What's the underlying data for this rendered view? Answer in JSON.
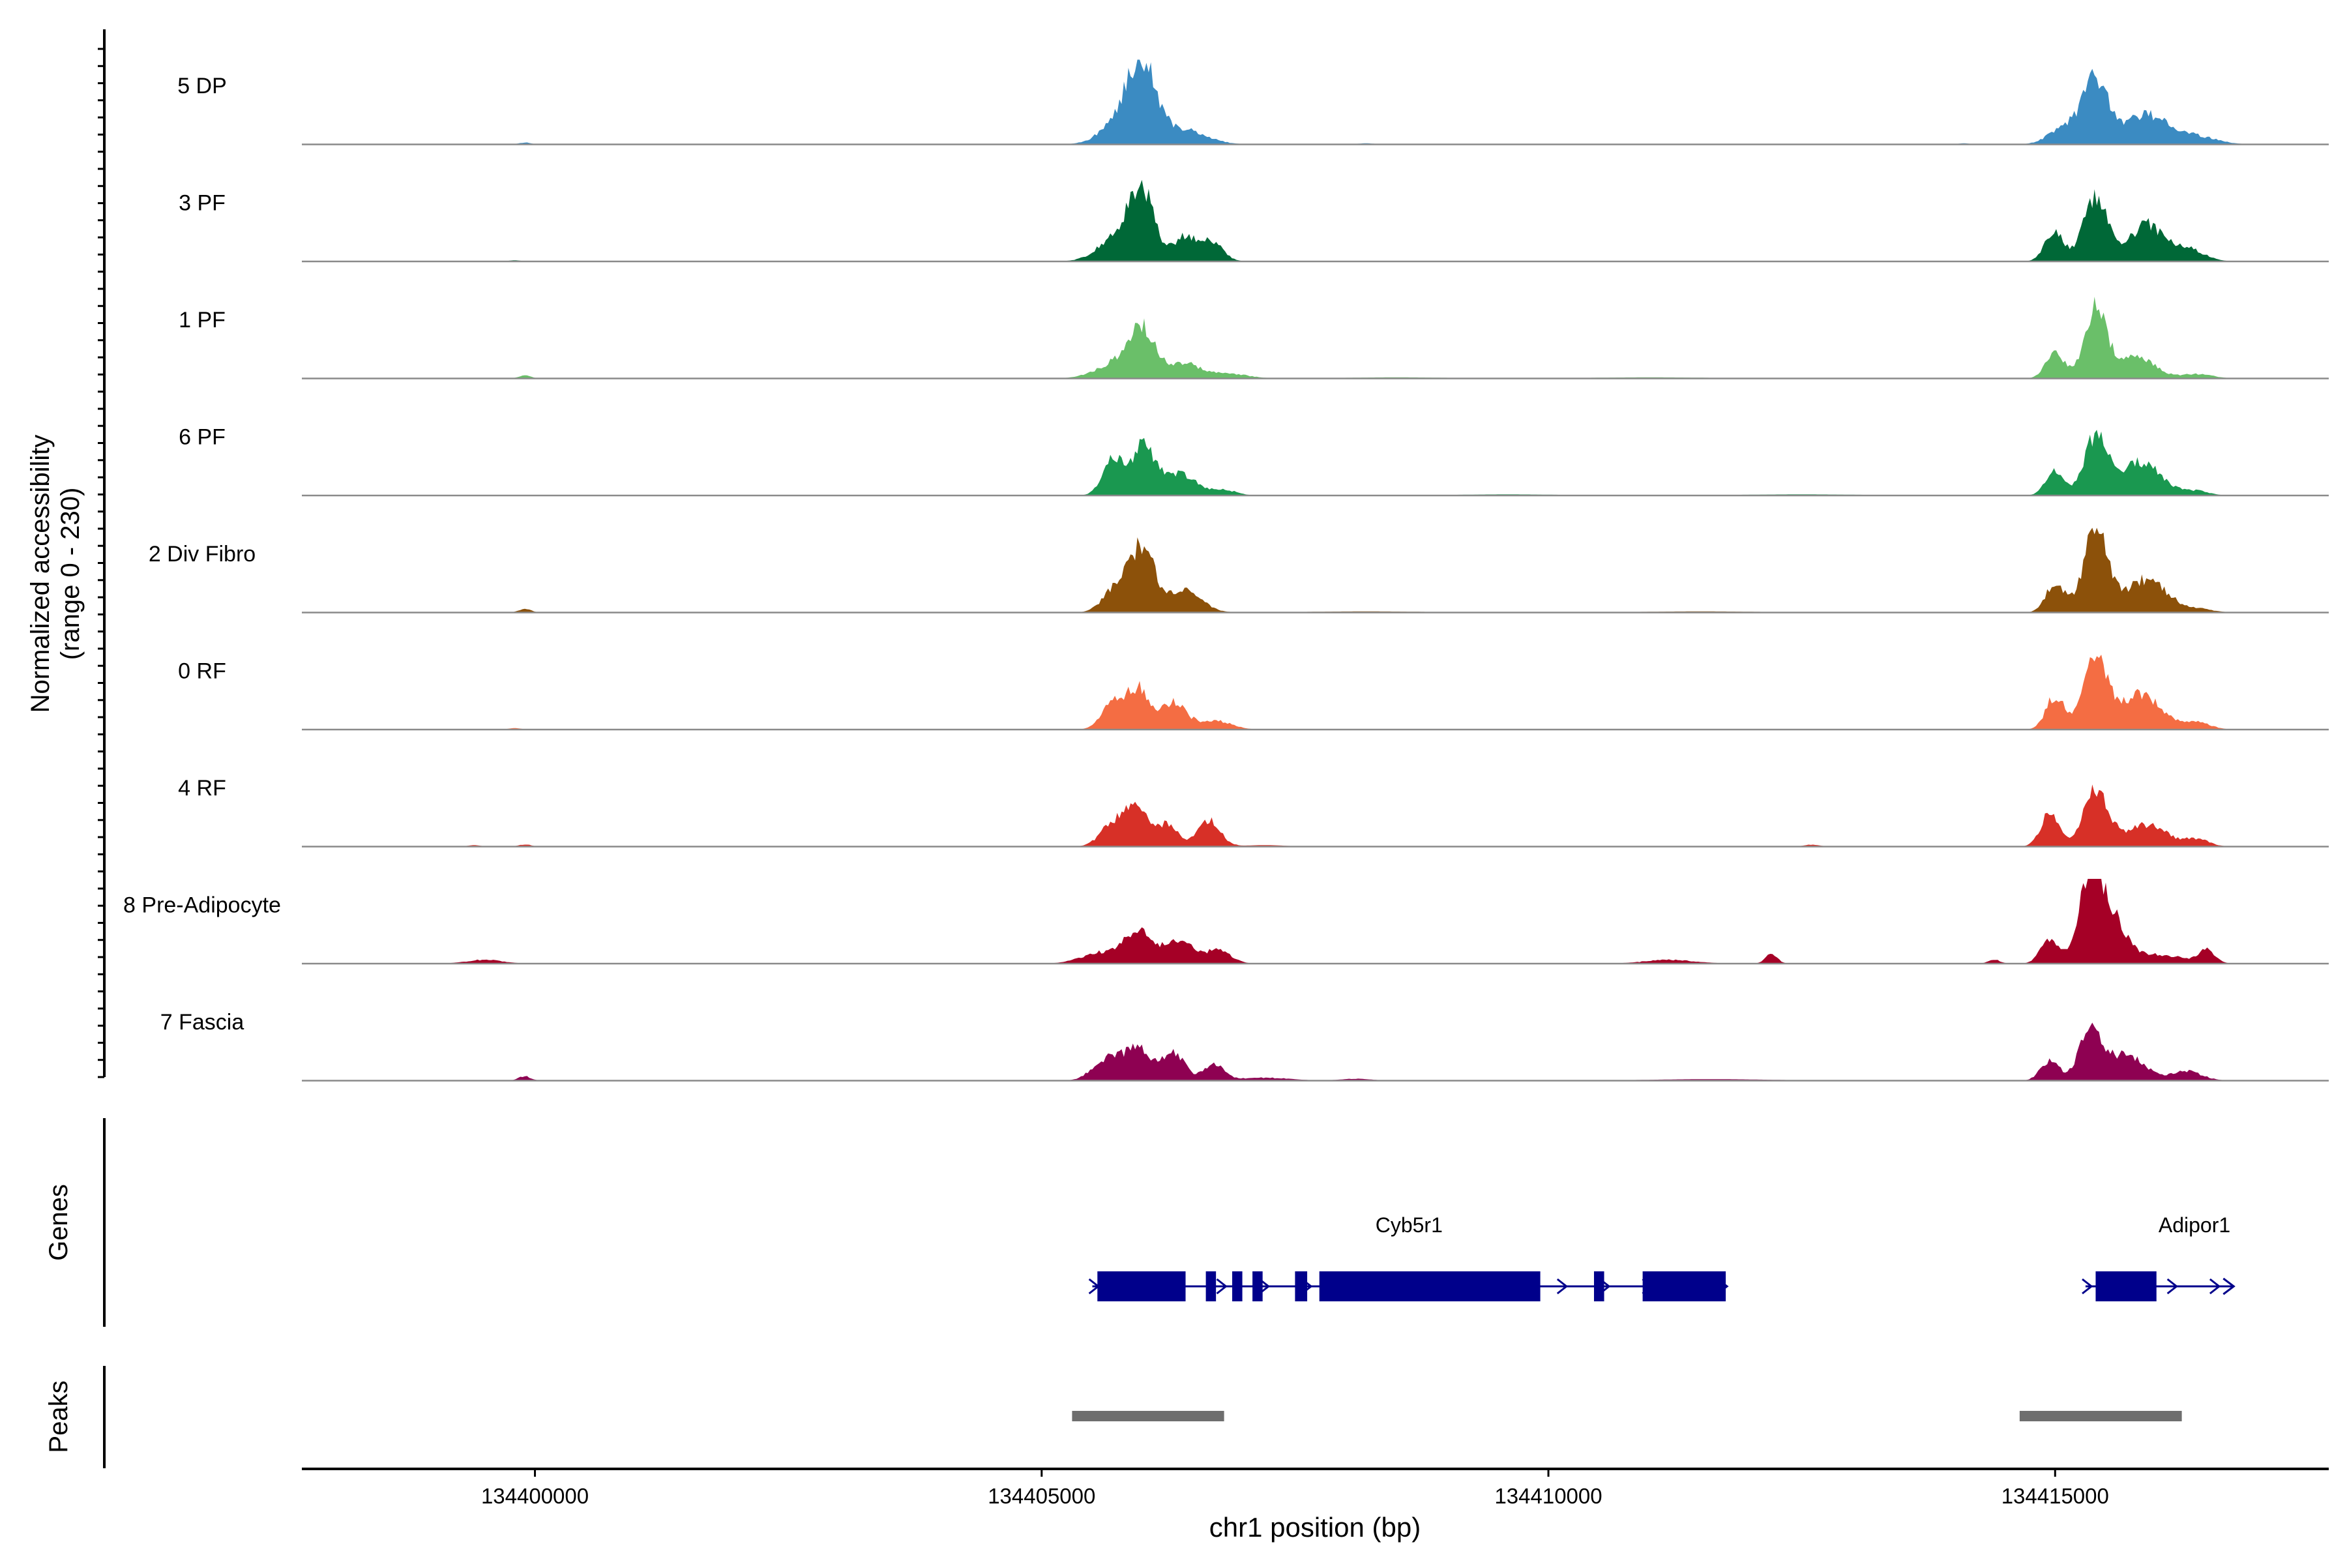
{
  "chart_data": {
    "type": "area",
    "title": "",
    "xlabel": "chr1 position (bp)",
    "ylabel_line1": "Normalized accessibility",
    "ylabel_line2": "(range 0 - 230)",
    "ylim": [
      0,
      230
    ],
    "xlim": [
      134397700,
      134417700
    ],
    "xticks": [
      {
        "value": 134400000,
        "label": "134400000"
      },
      {
        "value": 134405000,
        "label": "134405000"
      },
      {
        "value": 134410000,
        "label": "134410000"
      },
      {
        "value": 134415000,
        "label": "134415000"
      }
    ],
    "series": [
      {
        "name": "5 DP",
        "label": "5 DP",
        "color": "#3b8bc2",
        "peaks": [
          [
            134406000,
            160,
            130
          ],
          [
            134405850,
            90,
            200
          ],
          [
            134406400,
            40,
            220
          ],
          [
            134415400,
            170,
            120
          ],
          [
            134415900,
            80,
            220
          ],
          [
            134415100,
            50,
            150
          ],
          [
            134416400,
            20,
            200
          ],
          [
            134399900,
            5,
            60
          ],
          [
            134408200,
            3,
            80
          ],
          [
            134414100,
            3,
            60
          ]
        ]
      },
      {
        "name": "3 PF",
        "label": "3 PF",
        "color": "#006837",
        "peaks": [
          [
            134406000,
            150,
            120
          ],
          [
            134405800,
            80,
            200
          ],
          [
            134406650,
            60,
            120
          ],
          [
            134406400,
            60,
            100
          ],
          [
            134415400,
            170,
            120
          ],
          [
            134414990,
            85,
            90
          ],
          [
            134415900,
            100,
            160
          ],
          [
            134416300,
            35,
            160
          ],
          [
            134399800,
            3,
            60
          ]
        ]
      },
      {
        "name": "1 PF",
        "label": "1 PF",
        "color": "#6abf69",
        "peaks": [
          [
            134406000,
            110,
            120
          ],
          [
            134405800,
            50,
            220
          ],
          [
            134406400,
            40,
            140
          ],
          [
            134406800,
            15,
            200
          ],
          [
            134415400,
            185,
            110
          ],
          [
            134415000,
            70,
            90
          ],
          [
            134415800,
            60,
            180
          ],
          [
            134416400,
            12,
            150
          ],
          [
            134399900,
            8,
            60
          ],
          [
            134408500,
            3,
            500
          ],
          [
            134411000,
            3,
            600
          ]
        ]
      },
      {
        "name": "6 PF",
        "label": "6 PF",
        "color": "#1a9850",
        "peaks": [
          [
            134406000,
            130,
            110
          ],
          [
            134405700,
            100,
            100
          ],
          [
            134406350,
            60,
            170
          ],
          [
            134406800,
            15,
            120
          ],
          [
            134415400,
            160,
            110
          ],
          [
            134415000,
            70,
            90
          ],
          [
            134415850,
            90,
            200
          ],
          [
            134416400,
            12,
            120
          ],
          [
            134409600,
            3,
            500
          ],
          [
            134412500,
            3,
            600
          ]
        ]
      },
      {
        "name": "2 Div Fibro",
        "label": "2 Div Fibro",
        "color": "#8c510a",
        "peaks": [
          [
            134406000,
            175,
            110
          ],
          [
            134405750,
            75,
            130
          ],
          [
            134406400,
            60,
            170
          ],
          [
            134415400,
            220,
            120
          ],
          [
            134415000,
            80,
            90
          ],
          [
            134415900,
            90,
            200
          ],
          [
            134416400,
            10,
            150
          ],
          [
            134399900,
            10,
            60
          ],
          [
            134408200,
            3,
            600
          ],
          [
            134411500,
            3,
            600
          ]
        ]
      },
      {
        "name": "0 RF",
        "label": "0 RF",
        "color": "#f46d43",
        "peaks": [
          [
            134405950,
            110,
            110
          ],
          [
            134405700,
            70,
            110
          ],
          [
            134406300,
            75,
            120
          ],
          [
            134406700,
            25,
            160
          ],
          [
            134415400,
            190,
            120
          ],
          [
            134415000,
            90,
            90
          ],
          [
            134415850,
            95,
            200
          ],
          [
            134416400,
            20,
            130
          ],
          [
            134399800,
            4,
            60
          ]
        ]
      },
      {
        "name": "4 RF",
        "label": "4 RF",
        "color": "#d73027",
        "peaks": [
          [
            134405950,
            105,
            120
          ],
          [
            134405700,
            60,
            120
          ],
          [
            134406250,
            55,
            100
          ],
          [
            134406650,
            70,
            110
          ],
          [
            134415400,
            160,
            120
          ],
          [
            134414950,
            90,
            90
          ],
          [
            134415900,
            60,
            200
          ],
          [
            134416400,
            20,
            120
          ],
          [
            134399900,
            6,
            60
          ],
          [
            134399400,
            4,
            60
          ],
          [
            134407200,
            4,
            200
          ],
          [
            134412600,
            5,
            80
          ]
        ]
      },
      {
        "name": "8 Pre-Adipocyte",
        "label": "8 Pre-Adipocyte",
        "color": "#a50026",
        "peaks": [
          [
            134405950,
            85,
            130
          ],
          [
            134405600,
            30,
            200
          ],
          [
            134406350,
            65,
            150
          ],
          [
            134406750,
            35,
            120
          ],
          [
            134415350,
            230,
            110
          ],
          [
            134414950,
            70,
            90
          ],
          [
            134415550,
            120,
            140
          ],
          [
            134416000,
            25,
            250
          ],
          [
            134416500,
            35,
            80
          ],
          [
            134399500,
            10,
            180
          ],
          [
            134411200,
            10,
            250
          ],
          [
            134412200,
            25,
            60
          ],
          [
            134414400,
            10,
            60
          ]
        ]
      },
      {
        "name": "7 Fascia",
        "label": "7 Fascia",
        "color": "#8e0152",
        "peaks": [
          [
            134405950,
            90,
            120
          ],
          [
            134405650,
            60,
            140
          ],
          [
            134406300,
            75,
            110
          ],
          [
            134406700,
            45,
            100
          ],
          [
            134407200,
            8,
            250
          ],
          [
            134415350,
            140,
            110
          ],
          [
            134414950,
            55,
            90
          ],
          [
            134415700,
            70,
            180
          ],
          [
            134416300,
            25,
            150
          ],
          [
            134399900,
            12,
            60
          ],
          [
            134408100,
            5,
            150
          ],
          [
            134411600,
            4,
            600
          ]
        ]
      }
    ],
    "genes": {
      "track_label": "Genes",
      "items": [
        {
          "name": "Cyb5r1",
          "start": 134405500,
          "end": 134411750,
          "strand": "+",
          "exons": [
            [
              134405550,
              134406420
            ],
            [
              134406620,
              134406720
            ],
            [
              134406880,
              134406980
            ],
            [
              134407080,
              134407180
            ],
            [
              134407500,
              134407620
            ],
            [
              134407740,
              134409920
            ],
            [
              134410450,
              134410550
            ],
            [
              134410930,
              134411750
            ]
          ]
        },
        {
          "name": "Adipor1",
          "start": 134415300,
          "end": 134416750,
          "strand": "+",
          "exons": [
            [
              134415400,
              134416000
            ]
          ]
        }
      ]
    },
    "peaks_track": {
      "track_label": "Peaks",
      "items": [
        [
          134405300,
          134406800
        ],
        [
          134414650,
          134416250
        ]
      ]
    }
  }
}
